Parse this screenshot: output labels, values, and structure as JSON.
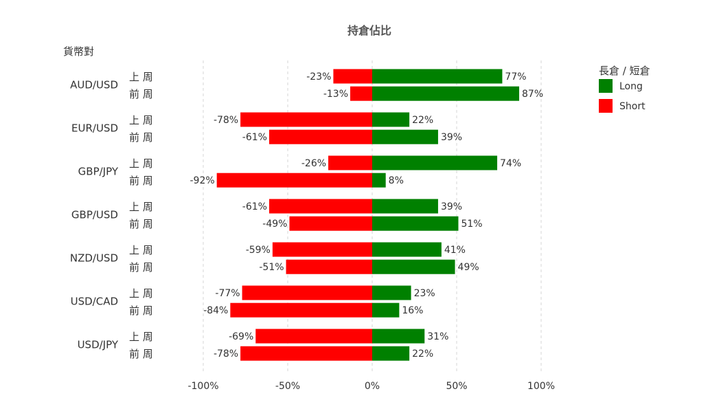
{
  "chart_data": {
    "type": "bar",
    "orientation": "horizontal",
    "stacked": "diverging",
    "title": "持倉佔比",
    "ylabel": "貨幣對",
    "xlim": [
      -100,
      100
    ],
    "x_ticks": [
      "-100%",
      "-50%",
      "0%",
      "50%",
      "100%"
    ],
    "grid": "vertical dashed",
    "legend": {
      "title": "長倉 / 短倉",
      "placement": "top-right",
      "entries": [
        {
          "label": "Long",
          "color": "#008000"
        },
        {
          "label": "Short",
          "color": "#ff0000"
        }
      ]
    },
    "week_labels": [
      "上 周",
      "前 周"
    ],
    "groups": [
      {
        "pair": "AUD/USD",
        "rows": [
          {
            "week": "上 周",
            "long": 77,
            "short": -23
          },
          {
            "week": "前 周",
            "long": 87,
            "short": -13
          }
        ]
      },
      {
        "pair": "EUR/USD",
        "rows": [
          {
            "week": "上 周",
            "long": 22,
            "short": -78
          },
          {
            "week": "前 周",
            "long": 39,
            "short": -61
          }
        ]
      },
      {
        "pair": "GBP/JPY",
        "rows": [
          {
            "week": "上 周",
            "long": 74,
            "short": -26
          },
          {
            "week": "前 周",
            "long": 8,
            "short": -92
          }
        ]
      },
      {
        "pair": "GBP/USD",
        "rows": [
          {
            "week": "上 周",
            "long": 39,
            "short": -61
          },
          {
            "week": "前 周",
            "long": 51,
            "short": -49
          }
        ]
      },
      {
        "pair": "NZD/USD",
        "rows": [
          {
            "week": "上 周",
            "long": 41,
            "short": -59
          },
          {
            "week": "前 周",
            "long": 49,
            "short": -51
          }
        ]
      },
      {
        "pair": "USD/CAD",
        "rows": [
          {
            "week": "上 周",
            "long": 23,
            "short": -77
          },
          {
            "week": "前 周",
            "long": 16,
            "short": -84
          }
        ]
      },
      {
        "pair": "USD/JPY",
        "rows": [
          {
            "week": "上 周",
            "long": 31,
            "short": -69
          },
          {
            "week": "前 周",
            "long": 22,
            "short": -78
          }
        ]
      }
    ]
  }
}
